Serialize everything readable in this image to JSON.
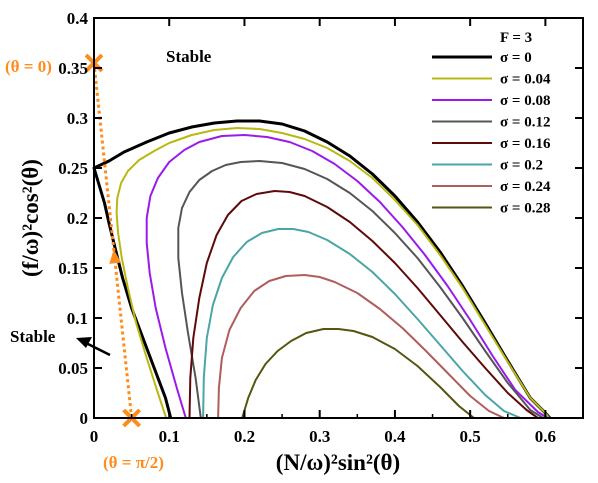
{
  "chart_data": {
    "type": "line",
    "xlabel": "(N/ω)²sin²(θ)",
    "ylabel": "(f/ω)²cos²(θ)",
    "xlim": [
      0,
      0.65
    ],
    "ylim": [
      0,
      0.4
    ],
    "xticks": [
      0,
      0.1,
      0.2,
      0.3,
      0.4,
      0.5,
      0.6
    ],
    "yticks": [
      0,
      0.05,
      0.1,
      0.15,
      0.2,
      0.25,
      0.3,
      0.35,
      0.4
    ],
    "xtick_labels": [
      "0",
      "0.1",
      "0.2",
      "0.3",
      "0.4",
      "0.5",
      "0.6"
    ],
    "ytick_labels": [
      "0",
      "0.05",
      "0.1",
      "0.15",
      "0.2",
      "0.25",
      "0.3",
      "0.35",
      "0.4"
    ],
    "grid": false,
    "legend_title": "F = 3",
    "legend_position": "top-right",
    "series": [
      {
        "name": "σ = 0",
        "color": "#000000",
        "width": 3,
        "x": [
          0.102,
          0.095,
          0.08,
          0.065,
          0.05,
          0.038,
          0.028,
          0.02,
          0.014,
          0.008,
          0.004,
          0.0,
          0.02,
          0.04,
          0.07,
          0.1,
          0.13,
          0.16,
          0.19,
          0.22,
          0.25,
          0.28,
          0.31,
          0.34,
          0.37,
          0.4,
          0.43,
          0.46,
          0.49,
          0.52,
          0.55,
          0.58,
          0.6,
          0.606
        ],
        "y": [
          0.0,
          0.02,
          0.05,
          0.08,
          0.11,
          0.14,
          0.17,
          0.195,
          0.215,
          0.23,
          0.24,
          0.25,
          0.257,
          0.266,
          0.276,
          0.285,
          0.291,
          0.295,
          0.297,
          0.297,
          0.294,
          0.287,
          0.276,
          0.262,
          0.244,
          0.222,
          0.196,
          0.166,
          0.132,
          0.095,
          0.057,
          0.02,
          0.005,
          0.0
        ]
      },
      {
        "name": "σ = 0.04",
        "color": "#b8b814",
        "width": 2,
        "x": [
          0.096,
          0.085,
          0.07,
          0.056,
          0.045,
          0.037,
          0.032,
          0.03,
          0.031,
          0.036,
          0.045,
          0.06,
          0.08,
          0.1,
          0.13,
          0.16,
          0.19,
          0.22,
          0.25,
          0.28,
          0.31,
          0.34,
          0.37,
          0.4,
          0.43,
          0.46,
          0.49,
          0.52,
          0.55,
          0.58,
          0.6,
          0.605
        ],
        "y": [
          0.0,
          0.025,
          0.06,
          0.095,
          0.13,
          0.16,
          0.185,
          0.205,
          0.22,
          0.235,
          0.247,
          0.258,
          0.267,
          0.275,
          0.283,
          0.288,
          0.29,
          0.289,
          0.285,
          0.279,
          0.27,
          0.257,
          0.24,
          0.218,
          0.193,
          0.163,
          0.13,
          0.093,
          0.056,
          0.02,
          0.005,
          0.0
        ]
      },
      {
        "name": "σ = 0.08",
        "color": "#9a1aeb",
        "width": 2,
        "x": [
          0.122,
          0.11,
          0.095,
          0.082,
          0.074,
          0.07,
          0.07,
          0.075,
          0.085,
          0.1,
          0.12,
          0.14,
          0.17,
          0.2,
          0.23,
          0.26,
          0.29,
          0.32,
          0.35,
          0.38,
          0.41,
          0.44,
          0.47,
          0.5,
          0.53,
          0.56,
          0.59,
          0.603
        ],
        "y": [
          0.0,
          0.03,
          0.07,
          0.11,
          0.145,
          0.175,
          0.2,
          0.222,
          0.24,
          0.256,
          0.268,
          0.276,
          0.282,
          0.283,
          0.281,
          0.276,
          0.267,
          0.254,
          0.237,
          0.216,
          0.191,
          0.163,
          0.132,
          0.098,
          0.062,
          0.028,
          0.006,
          0.0
        ]
      },
      {
        "name": "σ = 0.12",
        "color": "#555555",
        "width": 2,
        "x": [
          0.142,
          0.135,
          0.125,
          0.117,
          0.112,
          0.112,
          0.117,
          0.127,
          0.14,
          0.157,
          0.175,
          0.195,
          0.22,
          0.25,
          0.28,
          0.31,
          0.34,
          0.37,
          0.4,
          0.43,
          0.46,
          0.49,
          0.52,
          0.55,
          0.58,
          0.597
        ],
        "y": [
          0.0,
          0.04,
          0.085,
          0.125,
          0.16,
          0.19,
          0.21,
          0.226,
          0.238,
          0.247,
          0.253,
          0.256,
          0.257,
          0.255,
          0.249,
          0.239,
          0.225,
          0.207,
          0.185,
          0.16,
          0.131,
          0.1,
          0.067,
          0.035,
          0.008,
          0.0
        ]
      },
      {
        "name": "σ = 0.16",
        "color": "#5e0a0a",
        "width": 2,
        "x": [
          0.127,
          0.128,
          0.132,
          0.14,
          0.15,
          0.163,
          0.178,
          0.196,
          0.216,
          0.24,
          0.26,
          0.28,
          0.31,
          0.34,
          0.37,
          0.4,
          0.43,
          0.46,
          0.49,
          0.52,
          0.55,
          0.575,
          0.59
        ],
        "y": [
          0.0,
          0.04,
          0.08,
          0.12,
          0.155,
          0.183,
          0.203,
          0.217,
          0.224,
          0.227,
          0.226,
          0.222,
          0.211,
          0.196,
          0.177,
          0.155,
          0.13,
          0.103,
          0.076,
          0.05,
          0.025,
          0.008,
          0.0
        ]
      },
      {
        "name": "σ = 0.2",
        "color": "#4aa6a6",
        "width": 2,
        "x": [
          0.145,
          0.146,
          0.15,
          0.158,
          0.17,
          0.185,
          0.203,
          0.223,
          0.245,
          0.265,
          0.285,
          0.31,
          0.34,
          0.37,
          0.4,
          0.43,
          0.46,
          0.49,
          0.52,
          0.545,
          0.567
        ],
        "y": [
          0.0,
          0.04,
          0.08,
          0.113,
          0.14,
          0.161,
          0.176,
          0.185,
          0.189,
          0.189,
          0.186,
          0.178,
          0.164,
          0.146,
          0.124,
          0.099,
          0.073,
          0.047,
          0.023,
          0.007,
          0.0
        ]
      },
      {
        "name": "σ = 0.24",
        "color": "#b05d5d",
        "width": 2,
        "x": [
          0.165,
          0.166,
          0.17,
          0.18,
          0.195,
          0.213,
          0.233,
          0.255,
          0.28,
          0.3,
          0.32,
          0.35,
          0.38,
          0.41,
          0.44,
          0.47,
          0.5,
          0.525,
          0.545
        ],
        "y": [
          0.0,
          0.03,
          0.06,
          0.088,
          0.11,
          0.127,
          0.137,
          0.142,
          0.143,
          0.141,
          0.136,
          0.125,
          0.109,
          0.09,
          0.068,
          0.045,
          0.022,
          0.007,
          0.0
        ]
      },
      {
        "name": "σ = 0.28",
        "color": "#555510",
        "width": 2,
        "x": [
          0.197,
          0.205,
          0.215,
          0.228,
          0.244,
          0.262,
          0.282,
          0.305,
          0.325,
          0.345,
          0.37,
          0.4,
          0.43,
          0.46,
          0.485,
          0.505
        ],
        "y": [
          0.0,
          0.02,
          0.038,
          0.054,
          0.067,
          0.077,
          0.085,
          0.089,
          0.089,
          0.087,
          0.081,
          0.069,
          0.052,
          0.031,
          0.012,
          0.0
        ]
      }
    ],
    "markers": [
      {
        "label": "(θ = 0)",
        "x": 0.0,
        "y": 0.355
      },
      {
        "label": "(θ = π/2)",
        "x": 0.05,
        "y": 0.0
      }
    ],
    "annotations": [
      "Stable",
      "Stable"
    ],
    "highlight_color": "#ff8c1a"
  }
}
